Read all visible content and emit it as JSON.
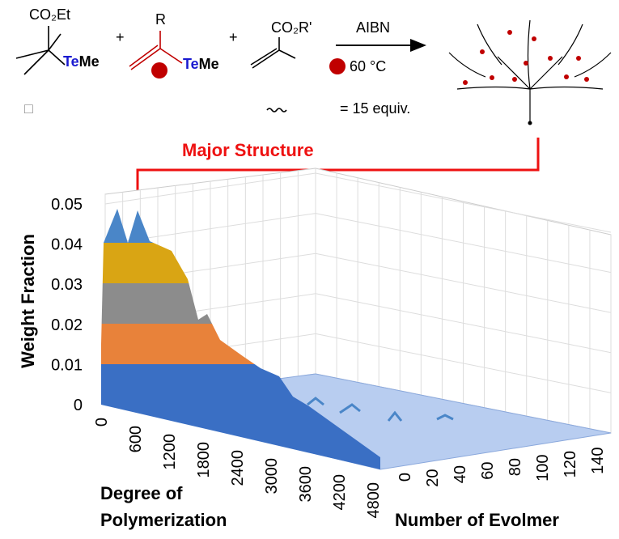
{
  "scheme": {
    "reagent1_group": "CO₂Et",
    "reagent2_group": "R",
    "reagent3_group": "CO₂R'",
    "plus": "+",
    "te": "Te",
    "me": "Me",
    "conditions_top": "AIBN",
    "conditions_bottom": "60 °C",
    "equiv": "= 15 equiv.",
    "placeholder": "□"
  },
  "annotation": "Major Structure",
  "plot": {
    "y_axis_title": "Weight Fraction",
    "y_ticks": [
      "0",
      "0.01",
      "0.02",
      "0.03",
      "0.04",
      "0.05"
    ],
    "x_axis_title": [
      "Degree of",
      "Polymerization"
    ],
    "x_ticks": [
      "0",
      "600",
      "1200",
      "1800",
      "2400",
      "3000",
      "3600",
      "4200",
      "4800"
    ],
    "z_axis_title": "Number of Evolmer",
    "z_ticks": [
      "0",
      "20",
      "40",
      "60",
      "80",
      "100",
      "120",
      "140"
    ]
  }
}
